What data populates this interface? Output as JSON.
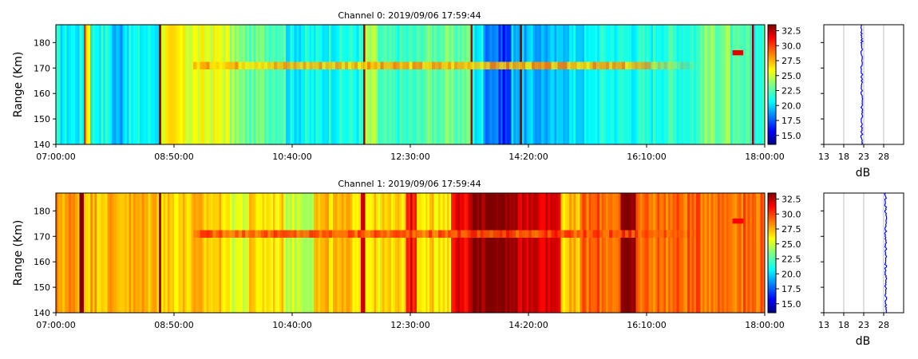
{
  "chart_data": [
    {
      "type": "heatmap",
      "title": "Channel 0: 2019/09/06 17:59:44",
      "ylabel": "Range (Km)",
      "xlabel": "",
      "x_tick_labels": [
        "07:00:00",
        "08:50:00",
        "10:40:00",
        "12:30:00",
        "14:20:00",
        "16:10:00",
        "18:00:00"
      ],
      "x_tick_minutes": [
        0,
        110,
        220,
        330,
        440,
        550,
        660
      ],
      "xlim_minutes": [
        0,
        660
      ],
      "y_ticks": [
        140,
        150,
        160,
        170,
        180
      ],
      "ylim": [
        140,
        187
      ],
      "colorbar": {
        "ticks": [
          "15.0",
          "17.5",
          "20.0",
          "22.5",
          "25.0",
          "27.5",
          "30.0",
          "32.5"
        ],
        "range": [
          13.5,
          33.5
        ],
        "colormap": "jet"
      },
      "base_level_db": 22.0,
      "echo_layer": {
        "range_km": 171,
        "start_minute": 128,
        "end_minute": 595,
        "level_db": 27.5
      },
      "late_echo": {
        "range_km": 176,
        "start_minute": 630,
        "end_minute": 640,
        "level_db": 31.5
      },
      "column_bands": [
        {
          "from": 0,
          "to": 25,
          "db": 21.0
        },
        {
          "from": 25,
          "to": 28,
          "db": 31.0
        },
        {
          "from": 28,
          "to": 32,
          "db": 26.5
        },
        {
          "from": 32,
          "to": 52,
          "db": 21.5
        },
        {
          "from": 52,
          "to": 62,
          "db": 19.5
        },
        {
          "from": 62,
          "to": 96,
          "db": 21.0
        },
        {
          "from": 96,
          "to": 98,
          "db": 32.0
        },
        {
          "from": 98,
          "to": 118,
          "db": 26.0
        },
        {
          "from": 118,
          "to": 162,
          "db": 25.5
        },
        {
          "from": 162,
          "to": 170,
          "db": 24.0
        },
        {
          "from": 170,
          "to": 214,
          "db": 23.0
        },
        {
          "from": 214,
          "to": 252,
          "db": 21.0
        },
        {
          "from": 252,
          "to": 285,
          "db": 21.5
        },
        {
          "from": 285,
          "to": 287,
          "db": 33.0
        },
        {
          "from": 287,
          "to": 300,
          "db": 24.0
        },
        {
          "from": 300,
          "to": 340,
          "db": 22.0
        },
        {
          "from": 340,
          "to": 386,
          "db": 23.0
        },
        {
          "from": 386,
          "to": 388,
          "db": 32.5
        },
        {
          "from": 388,
          "to": 398,
          "db": 21.0
        },
        {
          "from": 398,
          "to": 412,
          "db": 19.0
        },
        {
          "from": 412,
          "to": 423,
          "db": 17.0
        },
        {
          "from": 423,
          "to": 432,
          "db": 20.0
        },
        {
          "from": 432,
          "to": 434,
          "db": 33.0
        },
        {
          "from": 434,
          "to": 470,
          "db": 19.5
        },
        {
          "from": 470,
          "to": 500,
          "db": 20.5
        },
        {
          "from": 500,
          "to": 560,
          "db": 21.5
        },
        {
          "from": 560,
          "to": 600,
          "db": 22.0
        },
        {
          "from": 600,
          "to": 628,
          "db": 23.5
        },
        {
          "from": 628,
          "to": 648,
          "db": 22.0
        },
        {
          "from": 648,
          "to": 650,
          "db": 32.5
        },
        {
          "from": 650,
          "to": 660,
          "db": 22.0
        }
      ],
      "profile": {
        "xlabel": "dB",
        "x_ticks": [
          13,
          18,
          23,
          28
        ],
        "xlim": [
          13,
          33
        ],
        "ylim": [
          140,
          187
        ],
        "mean_db": 22.5
      }
    },
    {
      "type": "heatmap",
      "title": "Channel 1: 2019/09/06 17:59:44",
      "ylabel": "Range (Km)",
      "xlabel": "",
      "x_tick_labels": [
        "07:00:00",
        "08:50:00",
        "10:40:00",
        "12:30:00",
        "14:20:00",
        "16:10:00",
        "18:00:00"
      ],
      "x_tick_minutes": [
        0,
        110,
        220,
        330,
        440,
        550,
        660
      ],
      "xlim_minutes": [
        0,
        660
      ],
      "y_ticks": [
        140,
        150,
        160,
        170,
        180
      ],
      "ylim": [
        140,
        187
      ],
      "colorbar": {
        "ticks": [
          "15.0",
          "17.5",
          "20.0",
          "22.5",
          "25.0",
          "27.5",
          "30.0",
          "32.5"
        ],
        "range": [
          13.5,
          33.5
        ],
        "colormap": "jet"
      },
      "base_level_db": 28.0,
      "echo_layer": {
        "range_km": 171,
        "start_minute": 128,
        "end_minute": 595,
        "level_db": 29.5
      },
      "late_echo": {
        "range_km": 176,
        "start_minute": 630,
        "end_minute": 640,
        "level_db": 31.0
      },
      "column_bands": [
        {
          "from": 0,
          "to": 22,
          "db": 28.0
        },
        {
          "from": 22,
          "to": 26,
          "db": 33.5
        },
        {
          "from": 26,
          "to": 96,
          "db": 27.5
        },
        {
          "from": 96,
          "to": 98,
          "db": 33.5
        },
        {
          "from": 98,
          "to": 160,
          "db": 27.0
        },
        {
          "from": 160,
          "to": 180,
          "db": 25.5
        },
        {
          "from": 180,
          "to": 214,
          "db": 26.5
        },
        {
          "from": 214,
          "to": 240,
          "db": 25.0
        },
        {
          "from": 240,
          "to": 284,
          "db": 27.0
        },
        {
          "from": 284,
          "to": 288,
          "db": 32.5
        },
        {
          "from": 288,
          "to": 326,
          "db": 26.5
        },
        {
          "from": 326,
          "to": 336,
          "db": 31.0
        },
        {
          "from": 336,
          "to": 351,
          "db": 27.0
        },
        {
          "from": 351,
          "to": 368,
          "db": 26.0
        },
        {
          "from": 368,
          "to": 385,
          "db": 31.5
        },
        {
          "from": 385,
          "to": 430,
          "db": 33.5
        },
        {
          "from": 430,
          "to": 470,
          "db": 32.0
        },
        {
          "from": 470,
          "to": 488,
          "db": 27.0
        },
        {
          "from": 488,
          "to": 526,
          "db": 29.0
        },
        {
          "from": 526,
          "to": 540,
          "db": 33.0
        },
        {
          "from": 540,
          "to": 660,
          "db": 29.0
        }
      ],
      "profile": {
        "xlabel": "dB",
        "x_ticks": [
          13,
          18,
          23,
          28
        ],
        "xlim": [
          13,
          33
        ],
        "ylim": [
          140,
          187
        ],
        "mean_db": 28.5
      }
    }
  ]
}
